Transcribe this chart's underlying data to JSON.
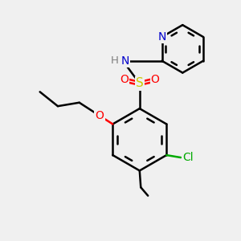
{
  "background_color": "#f0f0f0",
  "bond_color": "#000000",
  "bond_width": 1.8,
  "colors": {
    "C": "#000000",
    "N": "#0000cc",
    "O": "#ff0000",
    "S": "#cccc00",
    "Cl": "#00aa00",
    "H": "#808080"
  }
}
